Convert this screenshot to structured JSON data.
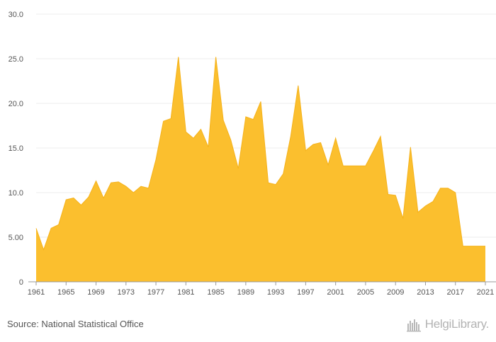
{
  "source": {
    "text": "Source: National Statistical Office"
  },
  "brand": {
    "name": "HelgiLibrary.",
    "icon": "helgi-library-logo-icon"
  },
  "chart_data": {
    "type": "area",
    "title": "",
    "xlabel": "",
    "ylabel": "",
    "color": "#FBBF2E",
    "edge_color": "#F5B21B",
    "grid": true,
    "legend": "none",
    "xlim": [
      1961,
      2021
    ],
    "ylim": [
      0,
      30
    ],
    "y_ticks": [
      0,
      5,
      10,
      15,
      20,
      25,
      30
    ],
    "y_tick_labels": [
      "0",
      "5.00",
      "10.0",
      "15.0",
      "20.0",
      "25.0",
      "30.0"
    ],
    "x_ticks": [
      1961,
      1965,
      1969,
      1973,
      1977,
      1981,
      1985,
      1989,
      1993,
      1997,
      2001,
      2005,
      2009,
      2013,
      2017,
      2021
    ],
    "x_tick_labels": [
      "1961",
      "1965",
      "1969",
      "1973",
      "1977",
      "1981",
      "1985",
      "1989",
      "1993",
      "1997",
      "2001",
      "2005",
      "2009",
      "2013",
      "2017",
      "2021"
    ],
    "x": [
      1961,
      1962,
      1963,
      1964,
      1965,
      1966,
      1967,
      1968,
      1969,
      1970,
      1971,
      1972,
      1973,
      1974,
      1975,
      1976,
      1977,
      1978,
      1979,
      1980,
      1981,
      1982,
      1983,
      1984,
      1985,
      1986,
      1987,
      1988,
      1989,
      1990,
      1991,
      1992,
      1993,
      1994,
      1995,
      1996,
      1997,
      1998,
      1999,
      2000,
      2001,
      2002,
      2003,
      2004,
      2005,
      2006,
      2007,
      2008,
      2009,
      2010,
      2011,
      2012,
      2013,
      2014,
      2015,
      2016,
      2017,
      2018,
      2019,
      2020,
      2021
    ],
    "values": [
      6.0,
      3.6,
      6.0,
      6.4,
      9.2,
      9.4,
      8.6,
      9.5,
      11.3,
      9.4,
      11.1,
      11.2,
      10.7,
      10.0,
      10.7,
      10.5,
      13.7,
      18.0,
      18.3,
      25.2,
      16.8,
      16.1,
      17.1,
      15.1,
      25.2,
      18.1,
      15.9,
      12.7,
      18.5,
      18.2,
      20.2,
      11.1,
      10.9,
      12.1,
      16.3,
      22.0,
      14.7,
      15.4,
      15.6,
      13.1,
      16.1,
      13.0,
      13.0,
      13.0,
      13.0,
      14.6,
      16.3,
      9.8,
      9.7,
      7.1,
      15.1,
      7.8,
      8.5,
      9.0,
      10.5,
      10.5,
      10.0,
      4.0,
      4.0,
      4.0,
      4.0
    ]
  }
}
